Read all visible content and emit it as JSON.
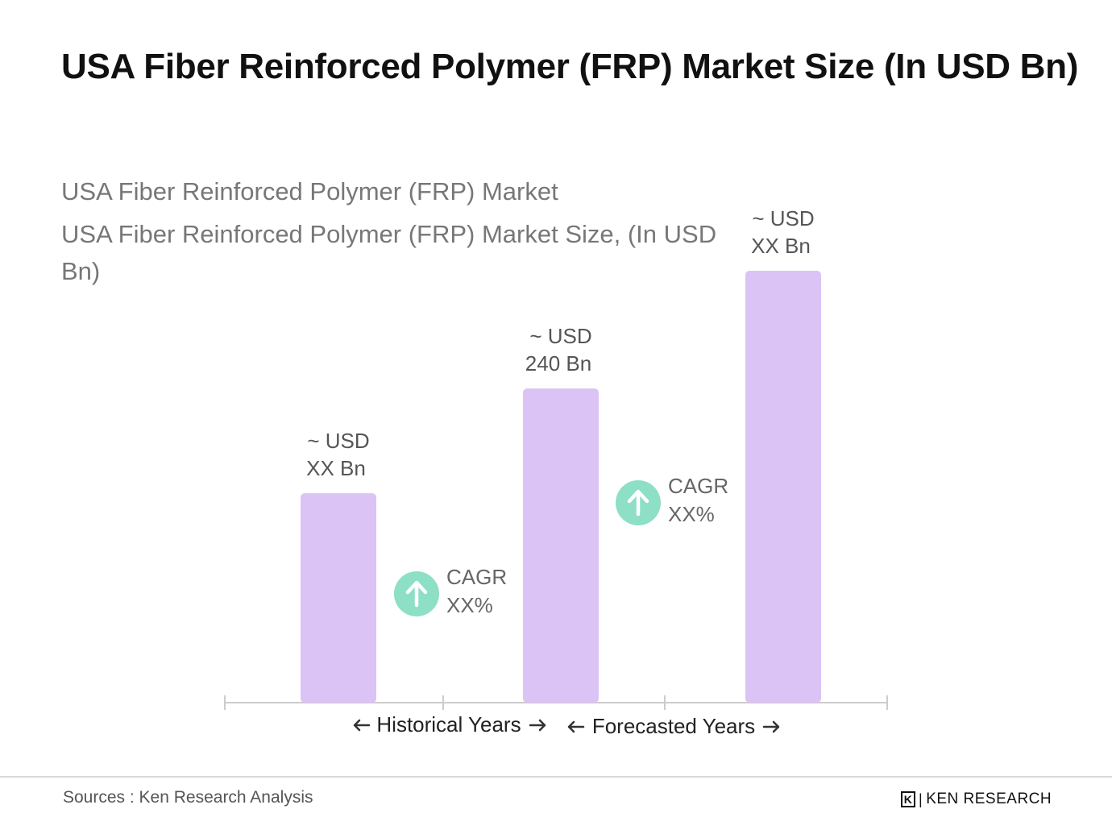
{
  "page": {
    "title": "USA Fiber Reinforced Polymer (FRP) Market Size (In USD Bn)"
  },
  "chart_data": {
    "type": "bar",
    "title": "USA Fiber Reinforced Polymer (FRP) Market",
    "subtitle": "USA Fiber Reinforced Polymer (FRP) Market Size, (In USD Bn)",
    "categories": [
      "",
      "",
      ""
    ],
    "values": [
      160,
      240,
      330
    ],
    "value_labels": [
      [
        "~  USD",
        " XX Bn"
      ],
      [
        "~  USD",
        "240 Bn"
      ],
      [
        "~ USD",
        "XX Bn"
      ]
    ],
    "bar_color": "#dcc3f5",
    "cagr": [
      {
        "line1": "CAGR",
        "line2": "XX%"
      },
      {
        "line1": "CAGR",
        "line2": "XX%"
      }
    ],
    "cagr_icon": "arrow-up-icon",
    "cagr_icon_color": "#8ddfc5",
    "axis_sections": [
      "Historical Years",
      "Forecasted Years"
    ],
    "axis_color": "#cccccc",
    "ylim": [
      0,
      340
    ],
    "grid": false
  },
  "footer": {
    "sources": "Sources : Ken Research Analysis",
    "brand_mark": "K",
    "brand_name": "KEN RESEARCH"
  }
}
